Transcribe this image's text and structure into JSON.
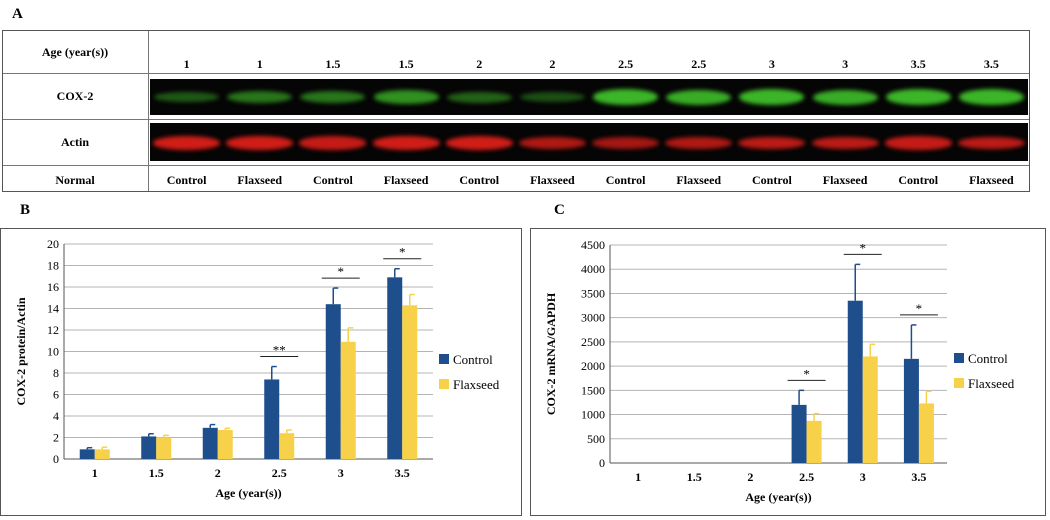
{
  "panel_a": {
    "letter": "A",
    "row_labels": {
      "age": "Age (year(s))",
      "cox2": "COX-2",
      "actin": "Actin",
      "normal": "Normal"
    },
    "lanes": [
      {
        "age": "1",
        "condition": "Control"
      },
      {
        "age": "1",
        "condition": "Flaxseed"
      },
      {
        "age": "1.5",
        "condition": "Control"
      },
      {
        "age": "1.5",
        "condition": "Flaxseed"
      },
      {
        "age": "2",
        "condition": "Control"
      },
      {
        "age": "2",
        "condition": "Flaxseed"
      },
      {
        "age": "2.5",
        "condition": "Control"
      },
      {
        "age": "2.5",
        "condition": "Flaxseed"
      },
      {
        "age": "3",
        "condition": "Control"
      },
      {
        "age": "3",
        "condition": "Flaxseed"
      },
      {
        "age": "3.5",
        "condition": "Control"
      },
      {
        "age": "3.5",
        "condition": "Flaxseed"
      }
    ],
    "band_colors": {
      "cox2": "#3fbf2a",
      "actin": "#e8201a",
      "background": "#050505"
    },
    "cox2_intensity": [
      0.45,
      0.6,
      0.6,
      0.75,
      0.5,
      0.4,
      0.95,
      0.9,
      0.95,
      0.9,
      0.95,
      0.95
    ],
    "actin_intensity": [
      0.9,
      0.9,
      0.85,
      0.9,
      0.9,
      0.75,
      0.7,
      0.75,
      0.8,
      0.8,
      0.85,
      0.8
    ]
  },
  "chart_data": [
    {
      "panel": "B",
      "type": "bar",
      "categories": [
        "1",
        "1.5",
        "2",
        "2.5",
        "3",
        "3.5"
      ],
      "series": [
        {
          "name": "Control",
          "values": [
            0.9,
            2.1,
            2.9,
            7.4,
            14.4,
            16.9
          ],
          "errors": [
            0.15,
            0.25,
            0.3,
            1.2,
            1.5,
            0.8
          ],
          "color": "#1f4e8c"
        },
        {
          "name": "Flaxseed",
          "values": [
            0.9,
            2.0,
            2.7,
            2.4,
            10.9,
            14.3
          ],
          "errors": [
            0.2,
            0.2,
            0.15,
            0.3,
            1.3,
            1.0
          ],
          "color": "#f7d14a"
        }
      ],
      "significance": [
        {
          "category": "2.5",
          "label": "**"
        },
        {
          "category": "3",
          "label": "*"
        },
        {
          "category": "3.5",
          "label": "*"
        }
      ],
      "xlabel": "Age (year(s))",
      "ylabel": "COX-2 protein/Actin",
      "ylim": [
        0,
        20
      ],
      "yticks": [
        0,
        2,
        4,
        6,
        8,
        10,
        12,
        14,
        16,
        18,
        20
      ],
      "grid": true,
      "legend_position": "right"
    },
    {
      "panel": "C",
      "type": "bar",
      "categories": [
        "1",
        "1.5",
        "2",
        "2.5",
        "3",
        "3.5"
      ],
      "series": [
        {
          "name": "Control",
          "values": [
            0,
            0,
            0,
            1200,
            3350,
            2150
          ],
          "errors": [
            0,
            0,
            0,
            300,
            750,
            700
          ],
          "color": "#1f4e8c"
        },
        {
          "name": "Flaxseed",
          "values": [
            0,
            0,
            0,
            870,
            2200,
            1230
          ],
          "errors": [
            0,
            0,
            0,
            150,
            250,
            250
          ],
          "color": "#f7d14a"
        }
      ],
      "significance": [
        {
          "category": "2.5",
          "label": "*"
        },
        {
          "category": "3",
          "label": "*"
        },
        {
          "category": "3.5",
          "label": "*"
        }
      ],
      "xlabel": "Age (year(s))",
      "ylabel": "COX-2 mRNA/GAPDH",
      "ylim": [
        0,
        4500
      ],
      "yticks": [
        0,
        500,
        1000,
        1500,
        2000,
        2500,
        3000,
        3500,
        4000,
        4500
      ],
      "grid": true,
      "legend_position": "right"
    }
  ]
}
